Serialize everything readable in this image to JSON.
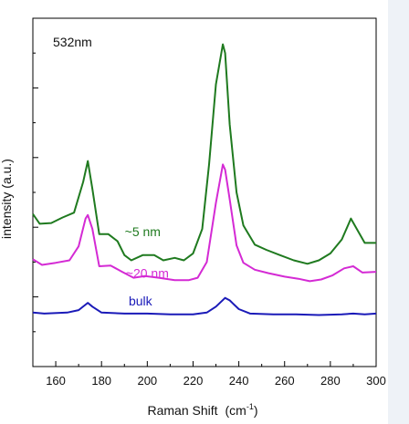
{
  "chart_data": {
    "type": "line",
    "annotation": "532nm",
    "xlabel": "Raman Shift",
    "xlabel_unit_base": "(cm",
    "xlabel_unit_exp": "-1",
    "xlabel_unit_close": ")",
    "ylabel": "intensity (a.u.)",
    "xlim": [
      150,
      300
    ],
    "ylim": [
      0,
      10
    ],
    "xticks": [
      160,
      180,
      200,
      220,
      240,
      260,
      280,
      300
    ],
    "grid": false,
    "series": [
      {
        "name": "~5 nm",
        "color": "#1f7a1f",
        "x": [
          150,
          153,
          158,
          163,
          168,
          172,
          174,
          176,
          179,
          183,
          187,
          190,
          193,
          198,
          203,
          207,
          212,
          216,
          220,
          224,
          227,
          230,
          233,
          234,
          236,
          239,
          242,
          247,
          252,
          258,
          264,
          270,
          275,
          280,
          285,
          289,
          292,
          295,
          300
        ],
        "y": [
          4.38,
          4.1,
          4.12,
          4.28,
          4.42,
          5.3,
          5.9,
          5.1,
          3.8,
          3.8,
          3.6,
          3.2,
          3.05,
          3.2,
          3.2,
          3.05,
          3.12,
          3.05,
          3.25,
          3.95,
          5.8,
          8.1,
          9.25,
          9.0,
          6.95,
          5.0,
          4.05,
          3.5,
          3.35,
          3.2,
          3.05,
          2.95,
          3.05,
          3.25,
          3.65,
          4.25,
          3.9,
          3.55,
          3.55
        ]
      },
      {
        "name": "~20 nm",
        "color": "#d42ad4",
        "x": [
          150,
          154,
          160,
          166,
          170,
          173,
          174,
          176,
          179,
          184,
          189,
          194,
          199,
          205,
          212,
          218,
          222,
          226,
          230,
          233,
          234,
          236,
          239,
          242,
          247,
          253,
          260,
          266,
          271,
          276,
          281,
          286,
          290,
          294,
          300
        ],
        "y": [
          3.08,
          2.92,
          2.98,
          3.05,
          3.45,
          4.25,
          4.35,
          3.95,
          2.88,
          2.9,
          2.72,
          2.55,
          2.6,
          2.55,
          2.48,
          2.48,
          2.55,
          3.0,
          4.7,
          5.8,
          5.65,
          4.8,
          3.48,
          2.98,
          2.78,
          2.68,
          2.58,
          2.52,
          2.45,
          2.5,
          2.62,
          2.82,
          2.88,
          2.7,
          2.72
        ]
      },
      {
        "name": "bulk",
        "color": "#1a1ab8",
        "x": [
          150,
          155,
          165,
          170,
          174,
          176,
          180,
          190,
          200,
          210,
          220,
          226,
          230,
          234,
          236,
          240,
          245,
          255,
          265,
          275,
          285,
          290,
          295,
          300
        ],
        "y": [
          1.55,
          1.52,
          1.55,
          1.62,
          1.83,
          1.72,
          1.55,
          1.52,
          1.52,
          1.5,
          1.5,
          1.55,
          1.72,
          1.97,
          1.9,
          1.65,
          1.52,
          1.5,
          1.5,
          1.48,
          1.5,
          1.52,
          1.5,
          1.52
        ]
      }
    ],
    "labels": [
      {
        "text": "~5 nm",
        "series": 0,
        "x": 198,
        "y": 3.75
      },
      {
        "text": "~20 nm",
        "series": 1,
        "x": 200,
        "y": 2.55
      },
      {
        "text": "bulk",
        "series": 2,
        "x": 197,
        "y": 1.75
      }
    ]
  }
}
